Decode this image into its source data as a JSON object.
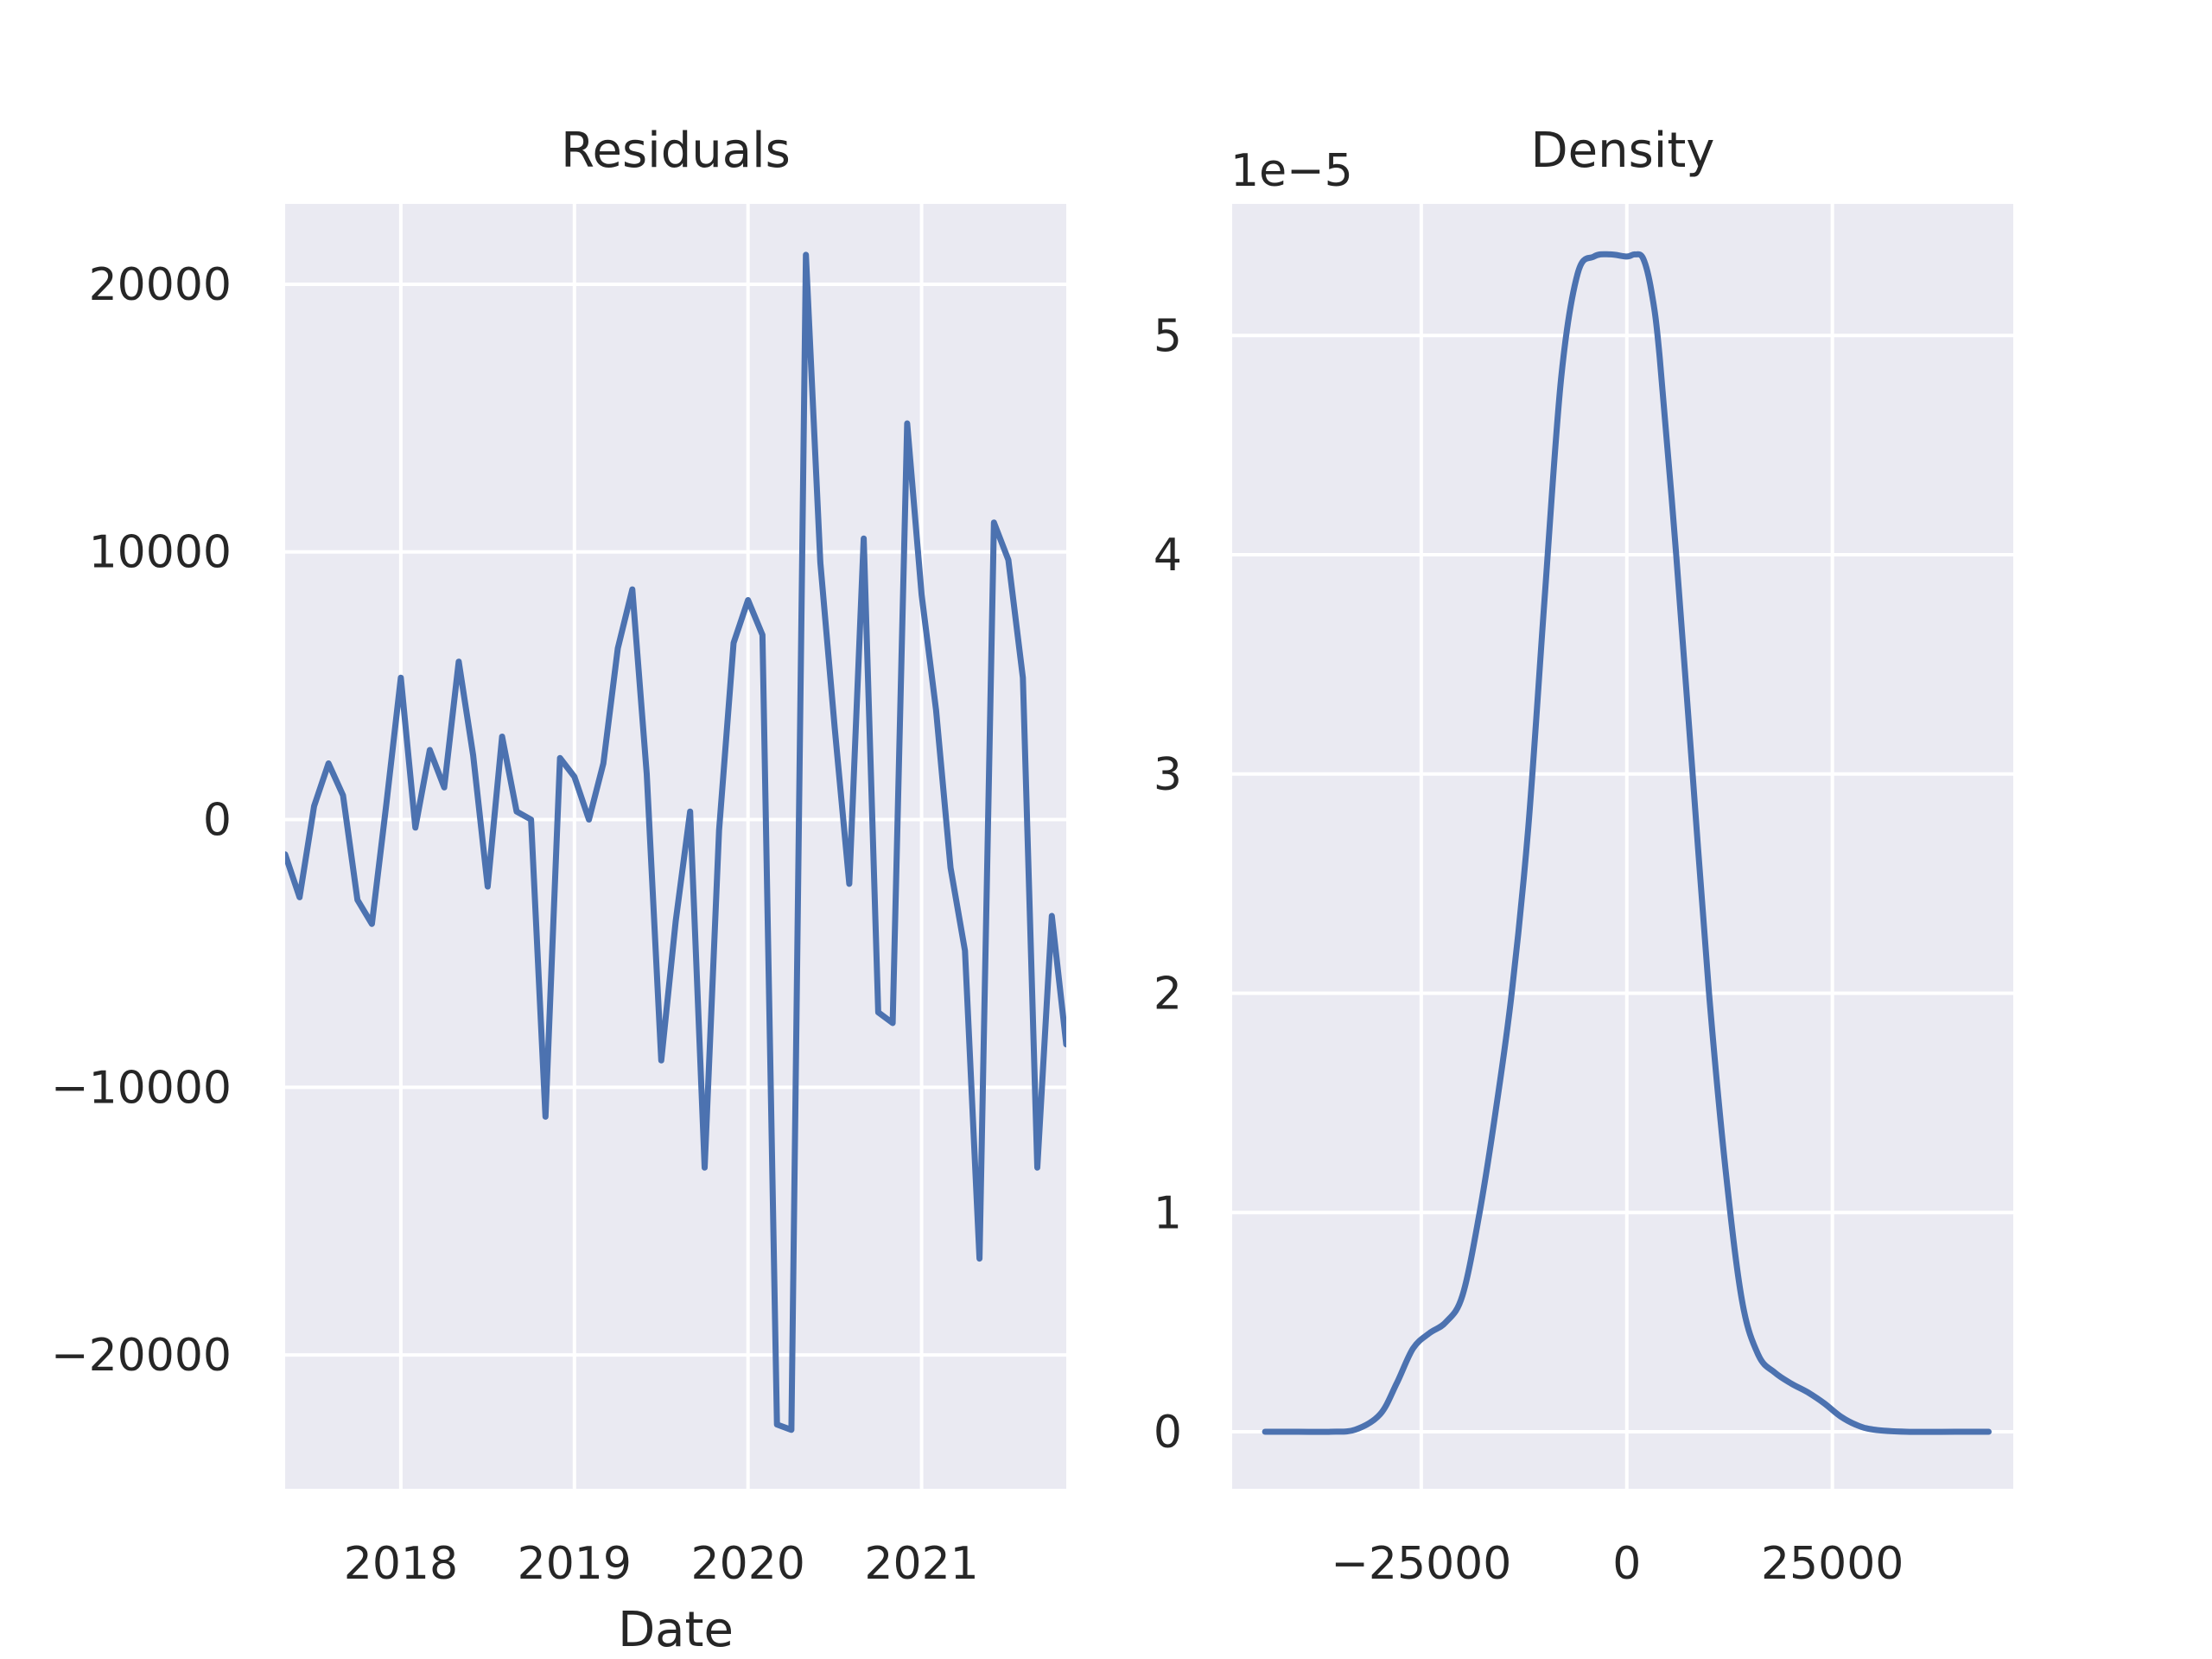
{
  "chart_data": [
    {
      "type": "line",
      "title": "Residuals",
      "xlabel": "Date",
      "ylabel": "",
      "x_ticks": [
        "2018",
        "2019",
        "2020",
        "2021"
      ],
      "y_ticks": [
        "20000",
        "10000",
        "0",
        "−10000",
        "−20000"
      ],
      "ylim": [
        -25000,
        23000
      ],
      "xlim": [
        "2017-05",
        "2021-11"
      ],
      "grid": true,
      "series": [
        {
          "color": "#4c72b0",
          "x": [
            "2017-05",
            "2017-06",
            "2017-07",
            "2017-08",
            "2017-09",
            "2017-10",
            "2017-11",
            "2017-12",
            "2018-01",
            "2018-02",
            "2018-03",
            "2018-04",
            "2018-05",
            "2018-06",
            "2018-07",
            "2018-08",
            "2018-09",
            "2018-10",
            "2018-11",
            "2018-12",
            "2019-01",
            "2019-02",
            "2019-03",
            "2019-04",
            "2019-05",
            "2019-06",
            "2019-07",
            "2019-08",
            "2019-09",
            "2019-10",
            "2019-11",
            "2019-12",
            "2020-01",
            "2020-02",
            "2020-03",
            "2020-04",
            "2020-05",
            "2020-06",
            "2020-07",
            "2020-08",
            "2020-09",
            "2020-10",
            "2020-11",
            "2020-12",
            "2021-01",
            "2021-02",
            "2021-03",
            "2021-04",
            "2021-05",
            "2021-06",
            "2021-07",
            "2021-08",
            "2021-09",
            "2021-10",
            "2021-11"
          ],
          "y": [
            -1300,
            -2900,
            500,
            2100,
            900,
            -3000,
            -3900,
            600,
            5300,
            -300,
            2600,
            1200,
            5900,
            2400,
            -2500,
            3100,
            300,
            0,
            -11100,
            2300,
            1600,
            0,
            2100,
            6400,
            8600,
            1700,
            -9000,
            -3800,
            300,
            -13000,
            -400,
            6600,
            8200,
            6900,
            -22600,
            -22800,
            21100,
            9600,
            3400,
            -2400,
            10500,
            -7200,
            -7600,
            14800,
            8400,
            4100,
            -1800,
            -4900,
            -16400,
            11100,
            9700,
            5300,
            -13000,
            -3600,
            -8400
          ]
        }
      ]
    },
    {
      "type": "line",
      "title": "Density",
      "xlabel": "",
      "ylabel": "",
      "offset_text": "1e−5",
      "x_ticks": [
        "−25000",
        "0",
        "25000"
      ],
      "y_ticks": [
        "0",
        "1",
        "2",
        "3",
        "4",
        "5"
      ],
      "xlim": [
        -48000,
        47000
      ],
      "ylim": [
        -0.26,
        5.6
      ],
      "grid": true,
      "series": [
        {
          "color": "#4c72b0",
          "x": [
            -44000,
            -40000,
            -36000,
            -33000,
            -30000,
            -28000,
            -26000,
            -24000,
            -22000,
            -20000,
            -18000,
            -16000,
            -14000,
            -12000,
            -10000,
            -8000,
            -6000,
            -4000,
            -2000,
            0,
            1000,
            2000,
            3000,
            4000,
            6000,
            8000,
            10000,
            12000,
            14000,
            16000,
            18000,
            20000,
            22000,
            24000,
            26000,
            28000,
            30000,
            34000,
            40000,
            44000
          ],
          "y": [
            0,
            0,
            0,
            0.01,
            0.08,
            0.22,
            0.38,
            0.45,
            0.5,
            0.62,
            0.98,
            1.45,
            2.0,
            2.75,
            3.8,
            4.8,
            5.28,
            5.36,
            5.37,
            5.36,
            5.37,
            5.35,
            5.2,
            4.9,
            4.0,
            3.0,
            2.0,
            1.2,
            0.6,
            0.35,
            0.27,
            0.22,
            0.18,
            0.13,
            0.07,
            0.03,
            0.01,
            0,
            0,
            0
          ]
        }
      ]
    }
  ]
}
